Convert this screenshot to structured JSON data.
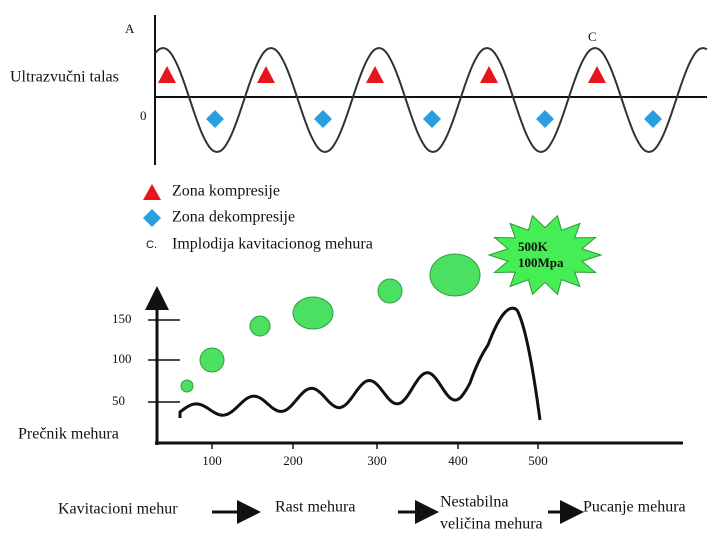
{
  "wave": {
    "label_a": "A",
    "title": "Ultrazvučni talas",
    "label_zero": "0",
    "label_c": "C"
  },
  "legend": {
    "compression": "Zona kompresije",
    "decompression": "Zona dekompresije",
    "implosion_marker": "C.",
    "implosion": "Implodija kavitacionog mehura"
  },
  "burst": {
    "line1": "500K",
    "line2": "100Mpa"
  },
  "plot": {
    "y_label": "Prečnik mehura",
    "yticks": [
      150,
      100,
      50
    ],
    "xticks": [
      100,
      200,
      300,
      400,
      500
    ]
  },
  "flow": {
    "step1": "Kavitacioni mehur",
    "step2": "Rast mehura",
    "step3_line1": "Nestabilna",
    "step3_line2": "veličina mehura",
    "step4": "Pucanje mehura"
  }
}
